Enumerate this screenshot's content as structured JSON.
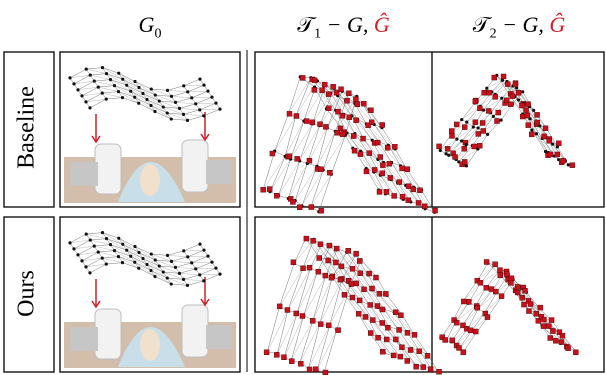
{
  "columns": [
    {
      "symbol": "G",
      "subscript": "0"
    },
    {
      "symbol": "𝒯",
      "subscript": "1",
      "rest": " − G, ",
      "hat": "Ĝ"
    },
    {
      "symbol": "𝒯",
      "subscript": "2",
      "rest": " − G, ",
      "hat": "Ĝ"
    }
  ],
  "rows": [
    "Baseline",
    "Ours"
  ]
}
